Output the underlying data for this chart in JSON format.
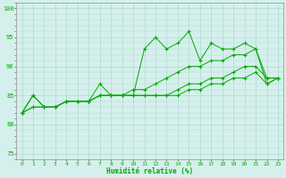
{
  "xlabel": "Humidité relative (%)",
  "bg_color": "#d5f0ec",
  "grid_color": "#b0d8d2",
  "line_color": "#00aa00",
  "xlim": [
    -0.5,
    23.5
  ],
  "ylim": [
    74,
    101
  ],
  "xticks": [
    0,
    1,
    2,
    3,
    4,
    5,
    6,
    7,
    8,
    9,
    10,
    11,
    12,
    13,
    14,
    15,
    16,
    17,
    18,
    19,
    20,
    21,
    22,
    23
  ],
  "yticks": [
    75,
    80,
    85,
    90,
    95,
    100
  ],
  "series": [
    [
      82,
      85,
      83,
      83,
      84,
      84,
      84,
      87,
      85,
      85,
      85,
      93,
      95,
      93,
      94,
      96,
      91,
      94,
      93,
      93,
      94,
      93,
      87,
      88
    ],
    [
      82,
      85,
      83,
      83,
      84,
      84,
      84,
      85,
      85,
      85,
      86,
      86,
      87,
      88,
      89,
      90,
      90,
      91,
      91,
      92,
      92,
      93,
      88,
      88
    ],
    [
      82,
      83,
      83,
      83,
      84,
      84,
      84,
      85,
      85,
      85,
      85,
      85,
      85,
      85,
      86,
      87,
      87,
      88,
      88,
      89,
      90,
      90,
      88,
      88
    ],
    [
      82,
      83,
      83,
      83,
      84,
      84,
      84,
      85,
      85,
      85,
      85,
      85,
      85,
      85,
      85,
      86,
      86,
      87,
      87,
      88,
      88,
      89,
      87,
      88
    ]
  ]
}
